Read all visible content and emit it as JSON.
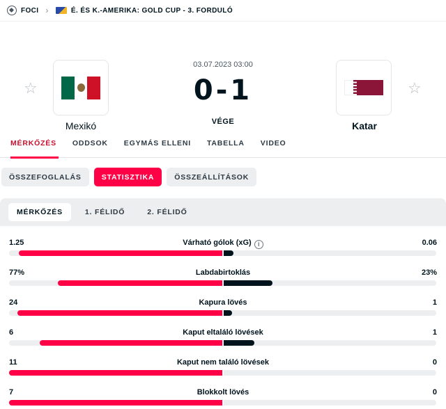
{
  "breadcrumb": {
    "sport": "FOCI",
    "competition": "É. ÉS K.-AMERIKA: GOLD CUP - 3. FORDULÓ"
  },
  "match": {
    "datetime": "03.07.2023 03:00",
    "score": "0-1",
    "status": "VÉGE",
    "home": {
      "name": "Mexikó",
      "flag_icon": "mexico-flag-icon"
    },
    "away": {
      "name": "Katar",
      "flag_icon": "qatar-flag-icon"
    }
  },
  "tabs": [
    {
      "label": "MÉRKŐZÉS",
      "active": true
    },
    {
      "label": "ODDSOK"
    },
    {
      "label": "EGYMÁS ELLENI"
    },
    {
      "label": "TABELLA"
    },
    {
      "label": "VIDEO"
    }
  ],
  "subtabs": [
    {
      "label": "ÖSSZEFOGLALÁS"
    },
    {
      "label": "STATISZTIKA",
      "active": true
    },
    {
      "label": "ÖSSZEÁLLÍTÁSOK"
    }
  ],
  "periods": [
    {
      "label": "MÉRKŐZÉS",
      "active": true
    },
    {
      "label": "1. FÉLIDŐ"
    },
    {
      "label": "2. FÉLIDŐ"
    }
  ],
  "stats": [
    {
      "name": "Várható gólok (xG)",
      "home": "1.25",
      "away": "0.06",
      "home_share": 0.954,
      "away_share": 0.046,
      "info_icon": true
    },
    {
      "name": "Labdabirtoklás",
      "home": "77%",
      "away": "23%",
      "home_share": 0.77,
      "away_share": 0.23
    },
    {
      "name": "Kapura lövés",
      "home": "24",
      "away": "1",
      "home_share": 0.96,
      "away_share": 0.04
    },
    {
      "name": "Kaput eltaláló lövések",
      "home": "6",
      "away": "1",
      "home_share": 0.857,
      "away_share": 0.143
    },
    {
      "name": "Kaput nem találó lövések",
      "home": "11",
      "away": "0",
      "home_share": 1.0,
      "away_share": 0.0
    },
    {
      "name": "Blokkolt lövés",
      "home": "7",
      "away": "0",
      "home_share": 1.0,
      "away_share": 0.0
    }
  ],
  "colors": {
    "accent": "#ff0046",
    "home_bar": "#ff0046",
    "away_bar": "#00141e"
  }
}
